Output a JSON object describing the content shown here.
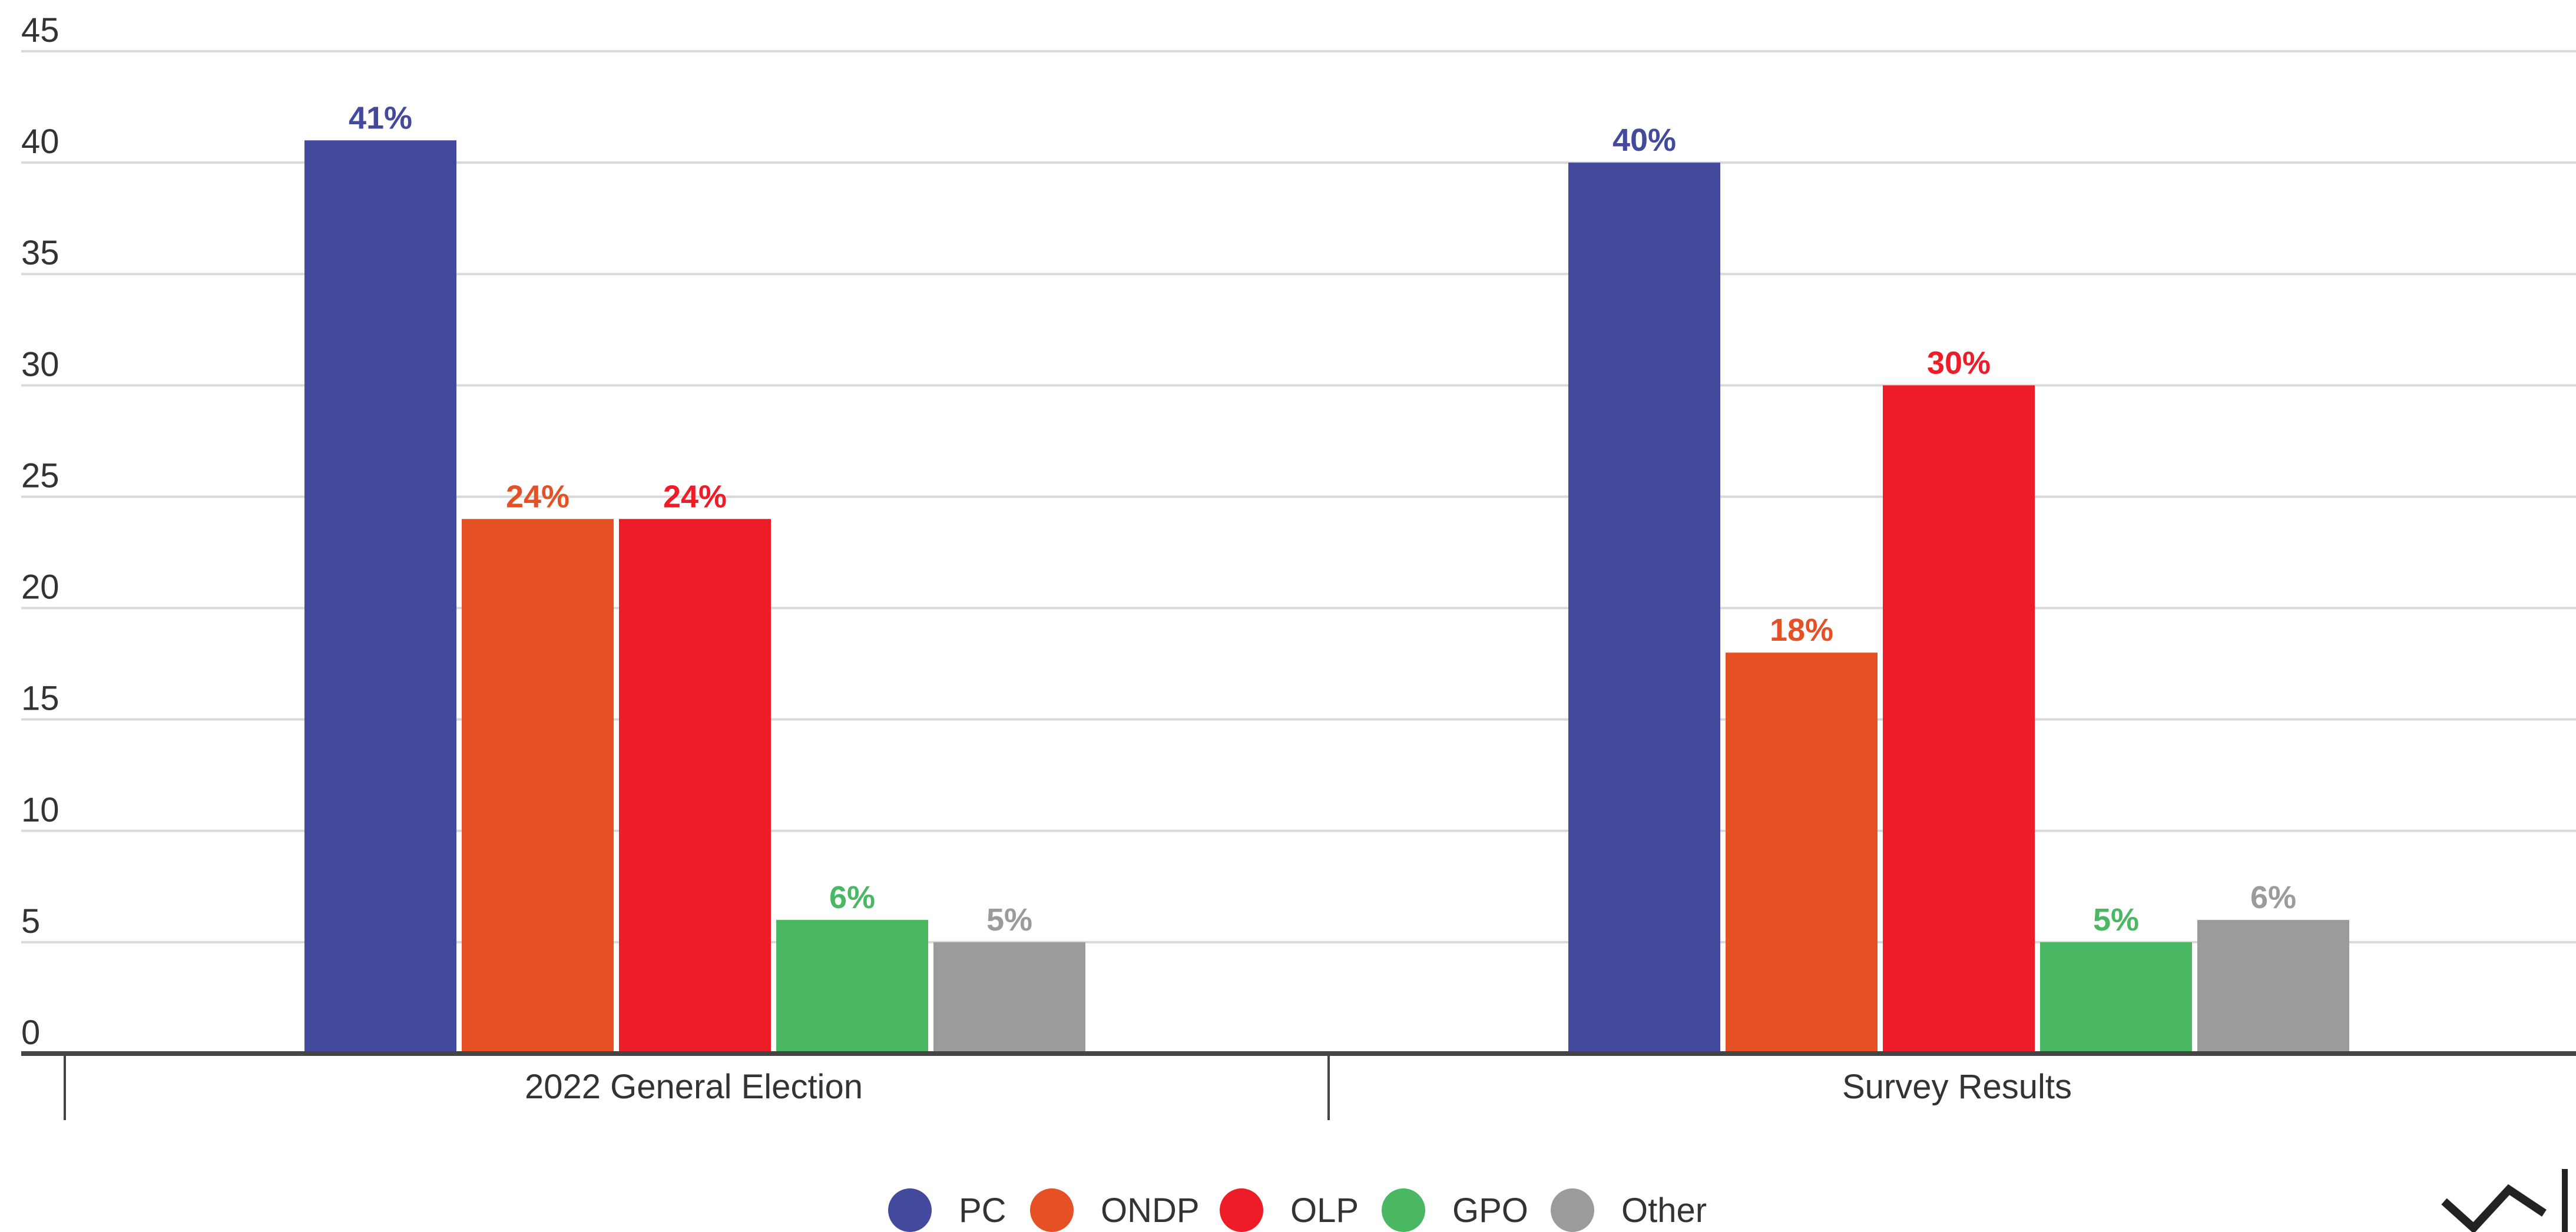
{
  "chart_data": {
    "type": "bar",
    "title": "",
    "xlabel": "",
    "ylabel": "",
    "ylim": [
      0,
      45
    ],
    "yticks": [
      0,
      5,
      10,
      15,
      20,
      25,
      30,
      35,
      40,
      45
    ],
    "grid": true,
    "legend_position": "bottom",
    "categories": [
      "2022 General Election",
      "Survey Results"
    ],
    "series": [
      {
        "name": "PC",
        "color": "#434a9e",
        "values": [
          41,
          40
        ],
        "labels": [
          "41%",
          "40%"
        ]
      },
      {
        "name": "ONDP",
        "color": "#e55124",
        "values": [
          24,
          18
        ],
        "labels": [
          "24%",
          "18%"
        ]
      },
      {
        "name": "OLP",
        "color": "#ed1c27",
        "values": [
          24,
          30
        ],
        "labels": [
          "24%",
          "30%"
        ]
      },
      {
        "name": "GPO",
        "color": "#4ab862",
        "values": [
          6,
          5
        ],
        "labels": [
          "6%",
          "5%"
        ]
      },
      {
        "name": "Other",
        "color": "#9b9b9b",
        "values": [
          5,
          6
        ],
        "labels": [
          "5%",
          "6%"
        ]
      }
    ]
  }
}
